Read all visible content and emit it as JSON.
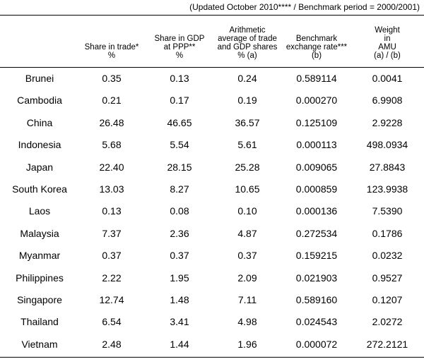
{
  "note": "(Updated October 2010**** / Benchmark period = 2000/2001)",
  "headers": [
    {
      "lines": [
        ""
      ]
    },
    {
      "lines": [
        "Share in trade*",
        "%"
      ]
    },
    {
      "lines": [
        "Share in GDP",
        "at PPP**",
        "%"
      ]
    },
    {
      "lines": [
        "Arithmetic",
        "average of trade",
        "and GDP shares",
        "% (a)"
      ]
    },
    {
      "lines": [
        "Benchmark",
        "exchange rate***",
        "(b)"
      ]
    },
    {
      "lines": [
        "Weight",
        "in",
        "AMU",
        "(a) / (b)"
      ]
    }
  ],
  "rows": [
    {
      "country": "Brunei",
      "trade": "0.35",
      "gdp": "0.13",
      "avg": "0.24",
      "rate": "0.589114",
      "weight": "0.0041"
    },
    {
      "country": "Cambodia",
      "trade": "0.21",
      "gdp": "0.17",
      "avg": "0.19",
      "rate": "0.000270",
      "weight": "6.9908"
    },
    {
      "country": "China",
      "trade": "26.48",
      "gdp": "46.65",
      "avg": "36.57",
      "rate": "0.125109",
      "weight": "2.9228"
    },
    {
      "country": "Indonesia",
      "trade": "5.68",
      "gdp": "5.54",
      "avg": "5.61",
      "rate": "0.000113",
      "weight": "498.0934"
    },
    {
      "country": "Japan",
      "trade": "22.40",
      "gdp": "28.15",
      "avg": "25.28",
      "rate": "0.009065",
      "weight": "27.8843"
    },
    {
      "country": "South Korea",
      "trade": "13.03",
      "gdp": "8.27",
      "avg": "10.65",
      "rate": "0.000859",
      "weight": "123.9938"
    },
    {
      "country": "Laos",
      "trade": "0.13",
      "gdp": "0.08",
      "avg": "0.10",
      "rate": "0.000136",
      "weight": "7.5390"
    },
    {
      "country": "Malaysia",
      "trade": "7.37",
      "gdp": "2.36",
      "avg": "4.87",
      "rate": "0.272534",
      "weight": "0.1786"
    },
    {
      "country": "Myanmar",
      "trade": "0.37",
      "gdp": "0.37",
      "avg": "0.37",
      "rate": "0.159215",
      "weight": "0.0232"
    },
    {
      "country": "Philippines",
      "trade": "2.22",
      "gdp": "1.95",
      "avg": "2.09",
      "rate": "0.021903",
      "weight": "0.9527"
    },
    {
      "country": "Singapore",
      "trade": "12.74",
      "gdp": "1.48",
      "avg": "7.11",
      "rate": "0.589160",
      "weight": "0.1207"
    },
    {
      "country": "Thailand",
      "trade": "6.54",
      "gdp": "3.41",
      "avg": "4.98",
      "rate": "0.024543",
      "weight": "2.0272"
    },
    {
      "country": "Vietnam",
      "trade": "2.48",
      "gdp": "1.44",
      "avg": "1.96",
      "rate": "0.000072",
      "weight": "272.2121"
    }
  ]
}
